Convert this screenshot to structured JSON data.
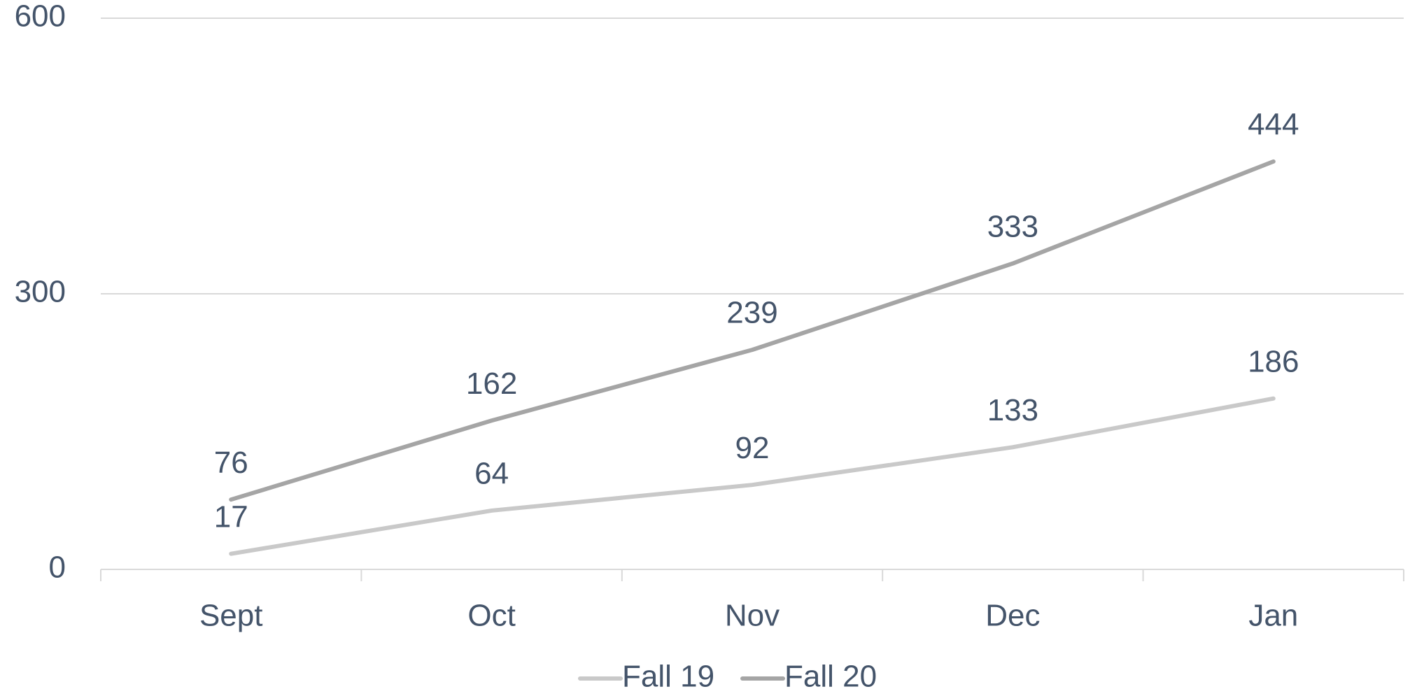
{
  "chart_data": {
    "type": "line",
    "categories": [
      "Sept",
      "Oct",
      "Nov",
      "Dec",
      "Jan"
    ],
    "series": [
      {
        "name": "Fall 19",
        "color": "#c9c9c9",
        "values": [
          17,
          64,
          92,
          133,
          186
        ]
      },
      {
        "name": "Fall 20",
        "color": "#a5a5a5",
        "values": [
          76,
          162,
          239,
          333,
          444
        ]
      }
    ],
    "ylim": [
      0,
      600
    ],
    "yticks": [
      0,
      300,
      600
    ],
    "grid": true,
    "legend": "bottom"
  }
}
